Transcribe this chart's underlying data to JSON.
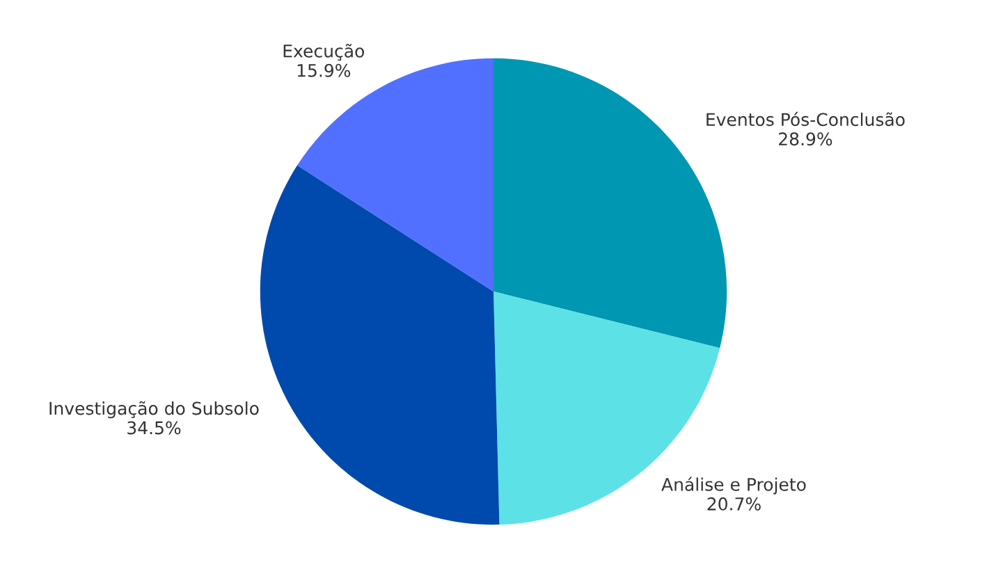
{
  "chart_data": {
    "type": "pie",
    "categories": [
      "Eventos Pós-Conclusão",
      "Análise e Projeto",
      "Investigação do Subsolo",
      "Execução"
    ],
    "values": [
      28.9,
      20.7,
      34.5,
      15.9
    ],
    "colors": [
      "#0097b2",
      "#5ce1e6",
      "#004aad",
      "#5170ff"
    ],
    "value_labels": [
      "28.9%",
      "20.7%",
      "34.5%",
      "15.9%"
    ]
  }
}
